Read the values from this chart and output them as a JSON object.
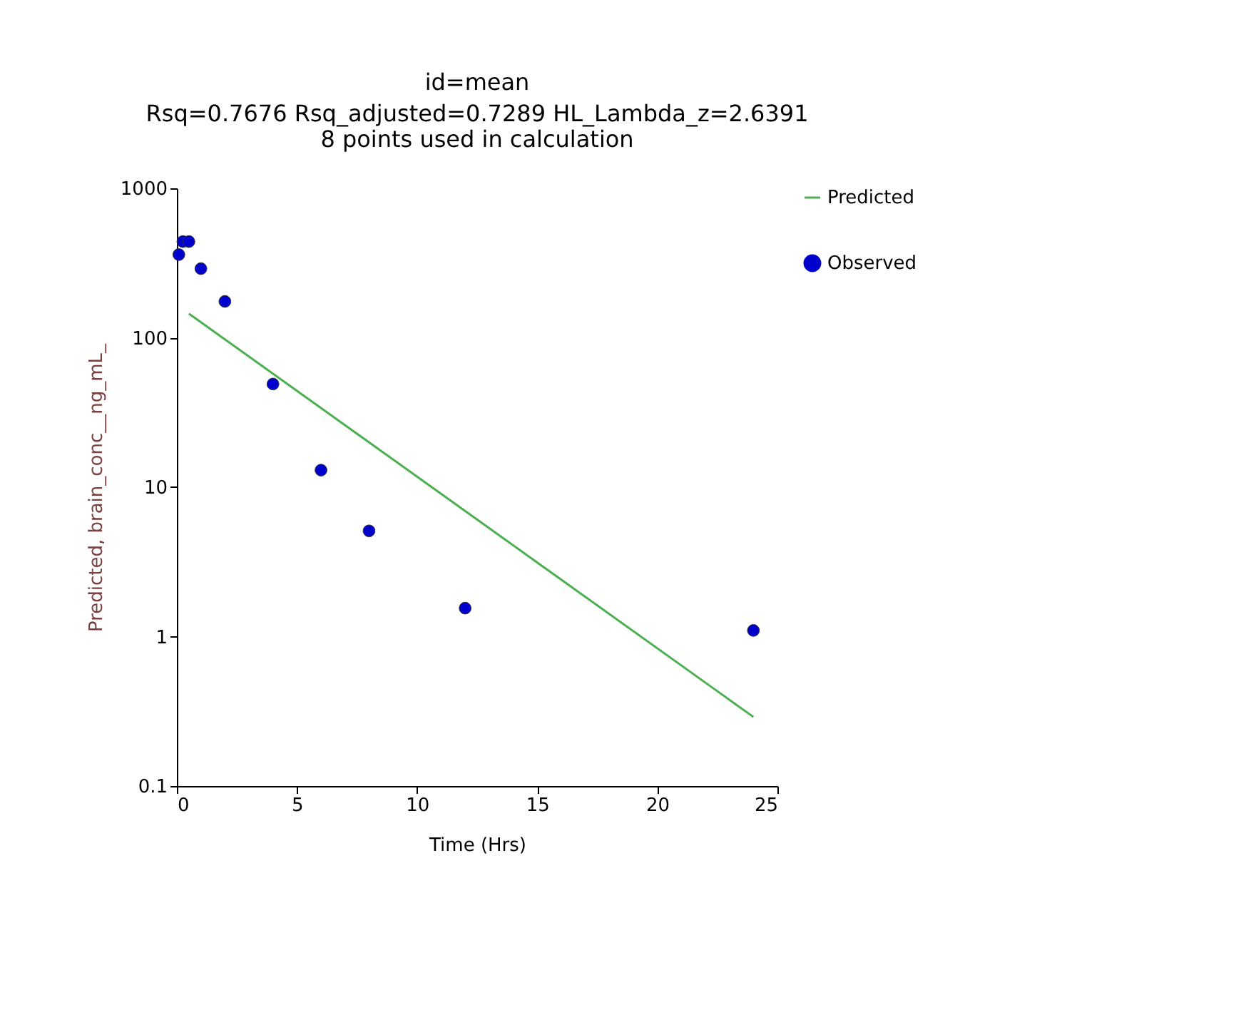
{
  "chart_data": {
    "type": "scatter",
    "title": "id=mean",
    "subtitle": "Rsq=0.7676  Rsq_adjusted=0.7289  HL_Lambda_z=2.6391",
    "annotations": [
      "8 points used in calculation"
    ],
    "xlabel": "Time (Hrs)",
    "ylabel": "Predicted, brain_conc__ng_mL_",
    "series": [
      {
        "name": "Predicted",
        "type": "line",
        "marker": "none",
        "color": "#4caf50",
        "x": [
          0.5,
          24
        ],
        "values": [
          145,
          0.29
        ]
      },
      {
        "name": "Observed",
        "color": "#0000cc",
        "x": [
          0.083,
          0.25,
          0.5,
          1,
          2,
          4,
          6,
          8,
          12,
          24
        ],
        "values": [
          360,
          440,
          440,
          290,
          175,
          49,
          13,
          5.1,
          1.55,
          1.1
        ]
      }
    ],
    "xlim": [
      0,
      25
    ],
    "xticks": [
      0,
      5,
      10,
      15,
      20,
      25
    ],
    "ylim": [
      0.1,
      1000
    ],
    "yticks": [
      0.1,
      1,
      10,
      100,
      1000
    ],
    "log": "y",
    "grid": false,
    "legend": "right",
    "marker": "circle",
    "line_style": "solid"
  }
}
